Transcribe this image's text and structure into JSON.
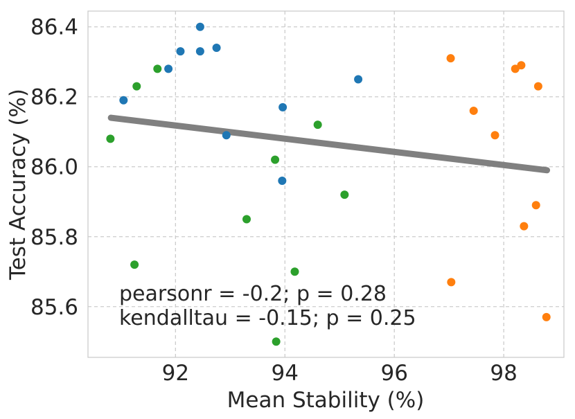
{
  "chart_data": {
    "type": "scatter",
    "title": "",
    "xlabel": "Mean Stability (%)",
    "ylabel": "Test Accuracy (%)",
    "xlim": [
      90.4,
      99.1
    ],
    "ylim": [
      85.455,
      86.445
    ],
    "xticks": [
      92,
      94,
      96,
      98
    ],
    "xtick_labels": [
      "92",
      "94",
      "96",
      "98"
    ],
    "yticks": [
      85.6,
      85.8,
      86.0,
      86.2,
      86.4
    ],
    "ytick_labels": [
      "85.6",
      "85.8",
      "86.0",
      "86.2",
      "86.4"
    ],
    "grid": true,
    "series": [
      {
        "name": "blue",
        "color": "#1f77b4",
        "points": [
          {
            "x": 91.05,
            "y": 86.19
          },
          {
            "x": 91.87,
            "y": 86.28
          },
          {
            "x": 92.09,
            "y": 86.33
          },
          {
            "x": 92.45,
            "y": 86.4
          },
          {
            "x": 92.45,
            "y": 86.33
          },
          {
            "x": 92.75,
            "y": 86.34
          },
          {
            "x": 92.93,
            "y": 86.09
          },
          {
            "x": 93.96,
            "y": 86.17
          },
          {
            "x": 93.95,
            "y": 85.96
          },
          {
            "x": 95.34,
            "y": 86.25
          }
        ]
      },
      {
        "name": "orange",
        "color": "#ff7f0e",
        "points": [
          {
            "x": 97.03,
            "y": 86.31
          },
          {
            "x": 97.45,
            "y": 86.16
          },
          {
            "x": 97.84,
            "y": 86.09
          },
          {
            "x": 98.21,
            "y": 86.28
          },
          {
            "x": 98.32,
            "y": 86.29
          },
          {
            "x": 98.63,
            "y": 86.23
          },
          {
            "x": 98.59,
            "y": 85.89
          },
          {
            "x": 98.37,
            "y": 85.83
          },
          {
            "x": 97.04,
            "y": 85.67
          },
          {
            "x": 98.78,
            "y": 85.57
          }
        ]
      },
      {
        "name": "green",
        "color": "#2ca02c",
        "points": [
          {
            "x": 90.81,
            "y": 86.08
          },
          {
            "x": 91.29,
            "y": 86.23
          },
          {
            "x": 91.67,
            "y": 86.28
          },
          {
            "x": 91.25,
            "y": 85.72
          },
          {
            "x": 93.3,
            "y": 85.85
          },
          {
            "x": 93.82,
            "y": 86.02
          },
          {
            "x": 94.6,
            "y": 86.12
          },
          {
            "x": 94.18,
            "y": 85.7
          },
          {
            "x": 95.09,
            "y": 85.92
          },
          {
            "x": 93.84,
            "y": 85.5
          }
        ]
      }
    ],
    "regression_line": {
      "color": "#808080",
      "x": [
        90.82,
        98.79
      ],
      "y": [
        86.14,
        85.99
      ]
    },
    "annotations": [
      "pearsonr = -0.2; p = 0.28",
      "kendalltau = -0.15; p = 0.25"
    ]
  }
}
